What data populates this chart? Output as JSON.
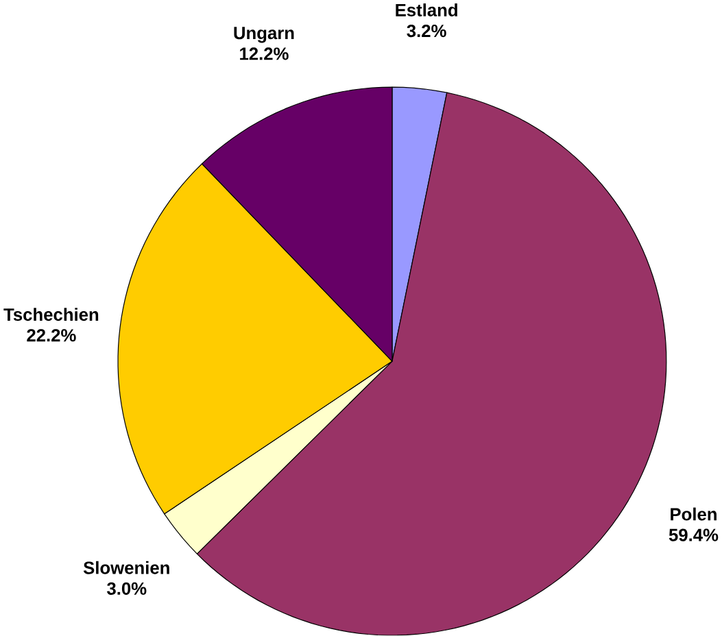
{
  "chart_data": {
    "type": "pie",
    "categories": [
      "Estland",
      "Polen",
      "Slowenien",
      "Tschechien",
      "Ungarn"
    ],
    "values": [
      3.2,
      59.4,
      3.0,
      22.2,
      12.2
    ],
    "colors": [
      "#9999ff",
      "#993366",
      "#ffffcc",
      "#ffcc00",
      "#660066"
    ],
    "value_labels": [
      "3.2%",
      "59.4%",
      "3.0%",
      "22.2%",
      "12.2%"
    ]
  }
}
